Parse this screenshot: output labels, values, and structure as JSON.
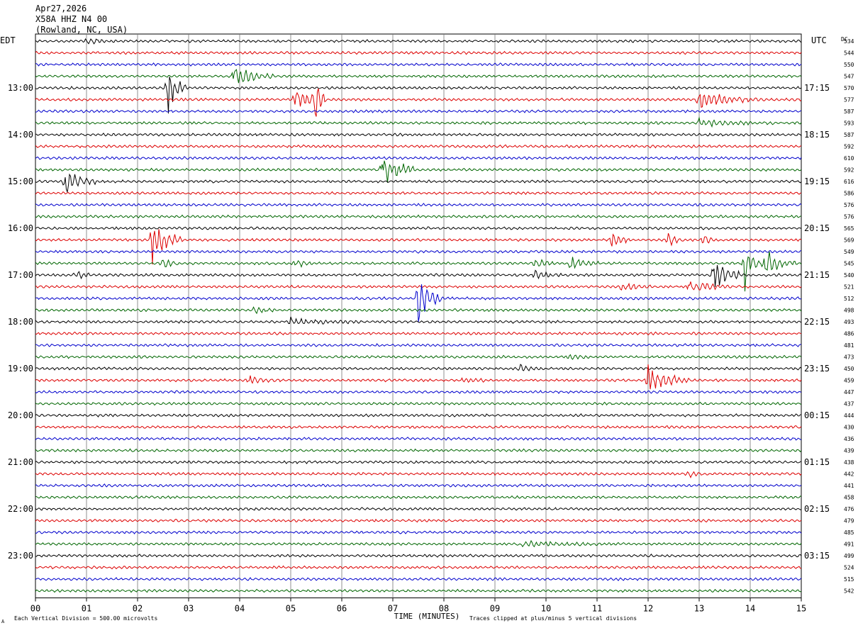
{
  "header": {
    "date": "Apr27,2026",
    "station": "X58A HHZ N4 00",
    "location": "(Rowland, NC, USA)"
  },
  "labels": {
    "left_tz": "EDT",
    "right_tz": "UTC",
    "dc_label": "DC"
  },
  "footer": {
    "xlabel": "TIME (MINUTES)",
    "scale_note": "Each Vertical Division =  500.00 microvolts",
    "clip_note": "Traces clipped at plus/minus 5 vertical divisions",
    "corner_mark": "A"
  },
  "chart_data": {
    "type": "line",
    "title": "X58A HHZ N4 00",
    "xlabel": "TIME (MINUTES)",
    "xlim": [
      0,
      15
    ],
    "x_ticks": [
      "00",
      "01",
      "02",
      "03",
      "04",
      "05",
      "06",
      "07",
      "08",
      "09",
      "10",
      "11",
      "12",
      "13",
      "14",
      "15"
    ],
    "trace_colors": [
      "#000000",
      "#dd0000",
      "#0000cc",
      "#006600"
    ],
    "left_hour_labels": [
      "13:00",
      "14:00",
      "15:00",
      "16:00",
      "17:00",
      "18:00",
      "19:00",
      "20:00",
      "21:00",
      "22:00",
      "23:00"
    ],
    "right_hour_labels": [
      "17:15",
      "18:15",
      "19:15",
      "20:15",
      "21:15",
      "22:15",
      "23:15",
      "00:15",
      "01:15",
      "02:15",
      "03:15"
    ],
    "dc_offsets": [
      534,
      544,
      550,
      547,
      570,
      577,
      587,
      593,
      587,
      592,
      610,
      592,
      616,
      586,
      576,
      576,
      565,
      569,
      549,
      545,
      540,
      521,
      512,
      498,
      493,
      486,
      481,
      473,
      450,
      459,
      447,
      437,
      444,
      430,
      436,
      439,
      438,
      442,
      441,
      458,
      476,
      479,
      485,
      491,
      499,
      524,
      515,
      542
    ],
    "events": [
      {
        "row": 0,
        "minute": 1.0,
        "amp": 0.6,
        "dur": 0.6
      },
      {
        "row": 3,
        "minute": 3.9,
        "amp": 2.0,
        "dur": 0.8
      },
      {
        "row": 4,
        "minute": 2.6,
        "amp": 4.5,
        "dur": 0.35
      },
      {
        "row": 5,
        "minute": 5.1,
        "amp": 2.0,
        "dur": 0.6
      },
      {
        "row": 5,
        "minute": 5.5,
        "amp": 3.2,
        "dur": 0.2
      },
      {
        "row": 5,
        "minute": 13.0,
        "amp": 1.8,
        "dur": 1.2
      },
      {
        "row": 7,
        "minute": 13.0,
        "amp": 0.6,
        "dur": 1.5
      },
      {
        "row": 11,
        "minute": 6.8,
        "amp": 4.0,
        "dur": 0.6
      },
      {
        "row": 12,
        "minute": 0.6,
        "amp": 2.2,
        "dur": 0.6
      },
      {
        "row": 17,
        "minute": 2.3,
        "amp": 3.8,
        "dur": 0.6
      },
      {
        "row": 17,
        "minute": 11.3,
        "amp": 1.2,
        "dur": 0.4
      },
      {
        "row": 17,
        "minute": 12.4,
        "amp": 1.2,
        "dur": 0.3
      },
      {
        "row": 17,
        "minute": 13.1,
        "amp": 1.0,
        "dur": 0.3
      },
      {
        "row": 19,
        "minute": 2.5,
        "amp": 1.0,
        "dur": 0.3
      },
      {
        "row": 19,
        "minute": 5.1,
        "amp": 0.9,
        "dur": 0.3
      },
      {
        "row": 19,
        "minute": 9.8,
        "amp": 1.0,
        "dur": 0.4
      },
      {
        "row": 19,
        "minute": 10.5,
        "amp": 1.3,
        "dur": 0.6
      },
      {
        "row": 19,
        "minute": 13.9,
        "amp": 3.8,
        "dur": 0.3
      },
      {
        "row": 19,
        "minute": 14.3,
        "amp": 3.0,
        "dur": 0.6
      },
      {
        "row": 20,
        "minute": 0.8,
        "amp": 0.8,
        "dur": 0.3
      },
      {
        "row": 20,
        "minute": 9.8,
        "amp": 0.8,
        "dur": 0.5
      },
      {
        "row": 20,
        "minute": 13.3,
        "amp": 3.5,
        "dur": 0.5
      },
      {
        "row": 21,
        "minute": 11.5,
        "amp": 0.8,
        "dur": 0.6
      },
      {
        "row": 21,
        "minute": 12.8,
        "amp": 1.2,
        "dur": 0.8
      },
      {
        "row": 22,
        "minute": 7.5,
        "amp": 4.5,
        "dur": 0.5
      },
      {
        "row": 23,
        "minute": 4.3,
        "amp": 0.8,
        "dur": 0.4
      },
      {
        "row": 24,
        "minute": 5.0,
        "amp": 0.5,
        "dur": 1.5
      },
      {
        "row": 27,
        "minute": 10.5,
        "amp": 0.6,
        "dur": 0.3
      },
      {
        "row": 28,
        "minute": 9.5,
        "amp": 0.5,
        "dur": 0.4
      },
      {
        "row": 29,
        "minute": 4.2,
        "amp": 0.6,
        "dur": 0.6
      },
      {
        "row": 29,
        "minute": 8.4,
        "amp": 0.7,
        "dur": 0.4
      },
      {
        "row": 29,
        "minute": 12.0,
        "amp": 2.6,
        "dur": 0.8
      },
      {
        "row": 37,
        "minute": 12.8,
        "amp": 0.6,
        "dur": 0.3
      },
      {
        "row": 43,
        "minute": 9.5,
        "amp": 0.5,
        "dur": 1.8
      }
    ]
  }
}
